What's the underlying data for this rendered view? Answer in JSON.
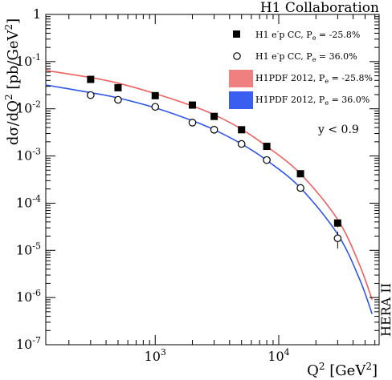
{
  "chart_data": {
    "type": "scatter",
    "title": "H1 Collaboration",
    "side_label": "HERA II",
    "cut_label": "y < 0.9",
    "xlabel": {
      "base": "Q",
      "sup": "2",
      "unit_open": " [GeV",
      "unit_sup": "2",
      "unit_close": "]"
    },
    "ylabel": {
      "pre": "dσ/dQ",
      "sup1": "2",
      "mid": " [pb/GeV",
      "sup2": "2",
      "post": "]"
    },
    "xscale": "log",
    "yscale": "log",
    "xlim": [
      130,
      65000
    ],
    "ylim": [
      1e-07,
      1
    ],
    "x_ticks": [
      {
        "value": 1000,
        "label": "10",
        "exp": "3"
      },
      {
        "value": 10000,
        "label": "10",
        "exp": "4"
      }
    ],
    "y_ticks": [
      {
        "value": 1,
        "label": "1",
        "exp": ""
      },
      {
        "value": 0.1,
        "label": "10",
        "exp": "-1"
      },
      {
        "value": 0.01,
        "label": "10",
        "exp": "-2"
      },
      {
        "value": 0.001,
        "label": "10",
        "exp": "-3"
      },
      {
        "value": 0.0001,
        "label": "10",
        "exp": "-4"
      },
      {
        "value": 1e-05,
        "label": "10",
        "exp": "-5"
      },
      {
        "value": 1e-06,
        "label": "10",
        "exp": "-6"
      },
      {
        "value": 1e-07,
        "label": "10",
        "exp": "-7"
      }
    ],
    "legend": [
      {
        "kind": "filled-square",
        "text": "H1 e",
        "text_sup": "-",
        "text2": "p CC, P",
        "text_sub": "e",
        "text3": " = -25.8%"
      },
      {
        "kind": "open-circle",
        "text": "H1 e",
        "text_sup": "-",
        "text2": "p CC, P",
        "text_sub": "e",
        "text3": " = 36.0%"
      },
      {
        "kind": "red-band",
        "text": "H1PDF 2012, P",
        "text_sup": "",
        "text2": "",
        "text_sub": "e",
        "text3": " = -25.8%"
      },
      {
        "kind": "blue-band",
        "text": "H1PDF 2012, P",
        "text_sup": "",
        "text2": "",
        "text_sub": "e",
        "text3": " = 36.0%"
      }
    ],
    "legend_position": "top-right",
    "colors": {
      "red_band": "#f08080",
      "blue_band": "#3a5ff0",
      "red_line": "#f06060",
      "blue_line": "#2f55e6"
    },
    "series": [
      {
        "name": "H1 e-p CC, Pe = -25.8%",
        "marker": "filled-square",
        "x": [
          300,
          500,
          1000,
          2000,
          3000,
          5000,
          8000,
          15000,
          30000
        ],
        "y": [
          0.042,
          0.028,
          0.019,
          0.012,
          0.0069,
          0.0036,
          0.0016,
          0.00042,
          3.8e-05
        ],
        "yerr": [
          0.003,
          0.002,
          0.0014,
          0.0008,
          0.0005,
          0.0003,
          0.00015,
          5e-05,
          7e-06
        ]
      },
      {
        "name": "H1 e-p CC, Pe = 36.0%",
        "marker": "open-circle",
        "x": [
          300,
          500,
          1000,
          2000,
          3000,
          5000,
          8000,
          15000,
          30000
        ],
        "y": [
          0.0195,
          0.0155,
          0.011,
          0.0051,
          0.0036,
          0.0018,
          0.00082,
          0.00021,
          1.8e-05
        ],
        "yerr": [
          0.002,
          0.0015,
          0.001,
          0.0005,
          0.0003,
          0.00018,
          9e-05,
          3e-05,
          7e-06
        ]
      },
      {
        "name": "H1PDF 2012, Pe = -25.8%",
        "kind": "curve",
        "x": [
          130,
          300,
          500,
          1000,
          2000,
          3000,
          5000,
          8000,
          15000,
          30000,
          45000,
          57000
        ],
        "y": [
          0.065,
          0.046,
          0.035,
          0.021,
          0.0115,
          0.0075,
          0.0037,
          0.0016,
          0.00042,
          4.5e-05,
          5e-06,
          9e-07
        ]
      },
      {
        "name": "H1PDF 2012, Pe = 36.0%",
        "kind": "curve",
        "x": [
          130,
          300,
          500,
          1000,
          2000,
          3000,
          5000,
          8000,
          15000,
          30000,
          45000,
          57000
        ],
        "y": [
          0.032,
          0.022,
          0.017,
          0.0105,
          0.0056,
          0.0036,
          0.0018,
          0.00081,
          0.00021,
          2.2e-05,
          2.5e-06,
          4.5e-07
        ]
      }
    ]
  }
}
